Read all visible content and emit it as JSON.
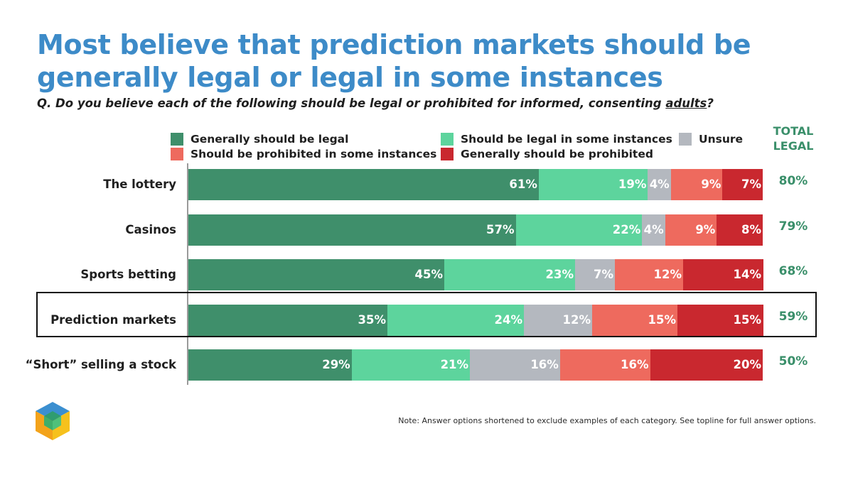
{
  "title": "Most believe that prediction markets should be generally legal or legal in some instances",
  "question": {
    "prefix": "Q.  Do you believe each of the following should be legal or prohibited for informed, consenting ",
    "underlined": "adults",
    "suffix": "?"
  },
  "total_header_line1": "TOTAL",
  "total_header_line2": "LEGAL",
  "note": "Note: Answer options shortened to exclude examples of each category. See topline for full answer options.",
  "colors": {
    "generally_legal": "#3f8f6b",
    "some_legal": "#5dd49d",
    "unsure": "#b4b8bf",
    "some_prohibited": "#ee6a5e",
    "generally_prohibited": "#c9282f",
    "title": "#3d8bc8",
    "total": "#3a8f6a"
  },
  "logo_icon": "cube-logo-icon",
  "highlighted_category": "Prediction markets",
  "chart_data": {
    "type": "bar",
    "orientation": "horizontal",
    "stacked": true,
    "categories": [
      "The lottery",
      "Casinos",
      "Sports betting",
      "Prediction markets",
      "“Short” selling a stock"
    ],
    "series": [
      {
        "name": "Generally should be legal",
        "values": [
          61,
          57,
          45,
          35,
          29
        ],
        "labels": [
          "61%",
          "57%",
          "45%",
          "35%",
          "29%"
        ]
      },
      {
        "name": "Should be legal in some instances",
        "values": [
          19,
          22,
          23,
          24,
          21
        ],
        "labels": [
          "19%",
          "22%",
          "23%",
          "24%",
          "21%"
        ]
      },
      {
        "name": "Unsure",
        "values": [
          4,
          4,
          7,
          12,
          16
        ],
        "labels": [
          "4%",
          "4%",
          "7%",
          "12%",
          "16%"
        ]
      },
      {
        "name": "Should be prohibited in some instances",
        "values": [
          9,
          9,
          12,
          15,
          16
        ],
        "labels": [
          "9%",
          "9%",
          "12%",
          "15%",
          "16%"
        ]
      },
      {
        "name": "Generally should be prohibited",
        "values": [
          7,
          8,
          14,
          15,
          20
        ],
        "labels": [
          "7%",
          "8%",
          "14%",
          "15%",
          "20%"
        ]
      }
    ],
    "total_legal": [
      "80%",
      "79%",
      "68%",
      "59%",
      "50%"
    ],
    "legend_placement": "top",
    "xlim": [
      0,
      100
    ]
  }
}
